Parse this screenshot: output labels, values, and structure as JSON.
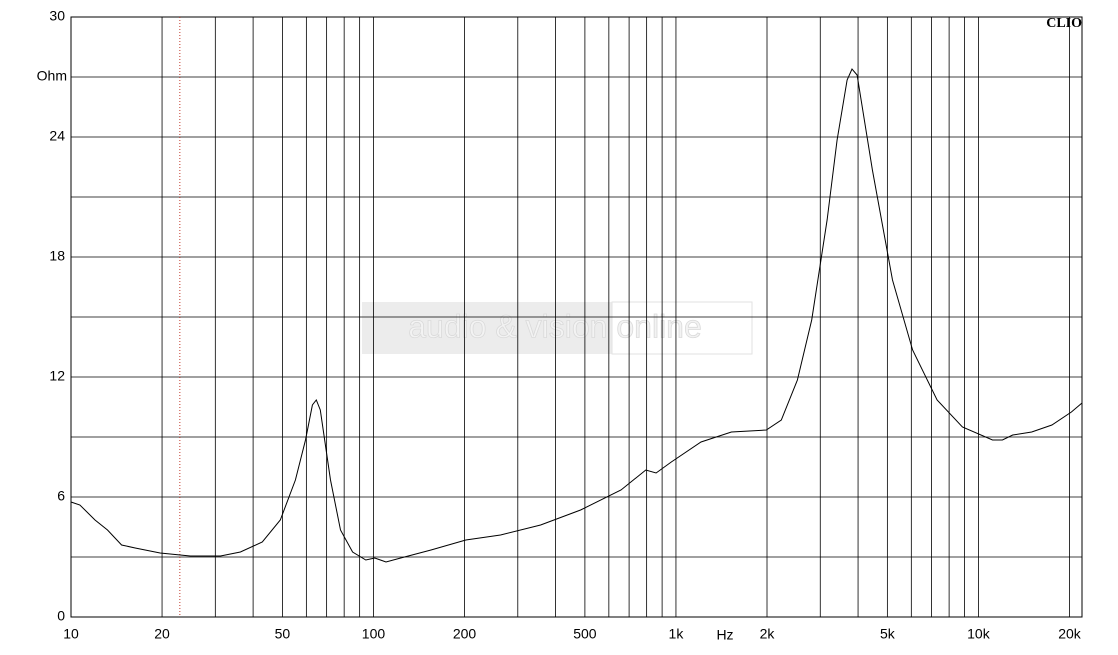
{
  "chart_data": {
    "type": "line",
    "brand": "CLIO",
    "xlabel": "Hz",
    "ylabel": "Ohm",
    "watermark": "audio & vision online",
    "log_x": true,
    "grid": true,
    "color": "#000000",
    "xlim": [
      10,
      22000
    ],
    "ylim": [
      0,
      30
    ],
    "xticks": [
      10,
      20,
      50,
      100,
      200,
      500,
      {
        "value": 1000,
        "label": "1k"
      },
      {
        "value": 2000,
        "label": "2k"
      },
      {
        "value": 5000,
        "label": "5k"
      },
      {
        "value": 10000,
        "label": "10k"
      },
      {
        "value": 20000,
        "label": "20k"
      }
    ],
    "x_minor_ticks": [
      30,
      40,
      60,
      70,
      80,
      90,
      300,
      400,
      600,
      700,
      800,
      900,
      3000,
      4000,
      6000,
      7000,
      8000,
      9000
    ],
    "yticks": [
      0,
      6,
      12,
      18,
      24,
      30
    ],
    "y_minor_ticks": [
      3,
      9,
      15,
      21,
      27
    ],
    "marker_x": 22.9,
    "marker_color": "#c0392b",
    "x": [
      10,
      10.7,
      12,
      13.2,
      14.7,
      16.3,
      19.7,
      24.8,
      31.2,
      36.3,
      42.9,
      49.2,
      55.2,
      59.6,
      62.8,
      64.7,
      66.7,
      72.1,
      77.8,
      85.3,
      94.3,
      101,
      110,
      123,
      155,
      202,
      263,
      357,
      484,
      658,
      795,
      860,
      965,
      1210,
      1525,
      1990,
      2230,
      2520,
      2810,
      3160,
      3410,
      3680,
      3820,
      3970,
      4460,
      5200,
      6060,
      7300,
      8850,
      11130,
      12000,
      12980,
      15000,
      17500,
      20300,
      22000
    ],
    "values": [
      5.75,
      5.6,
      4.85,
      4.35,
      3.6,
      3.45,
      3.2,
      3.05,
      3.05,
      3.25,
      3.75,
      4.85,
      6.85,
      8.85,
      10.6,
      10.85,
      10.35,
      6.85,
      4.35,
      3.25,
      2.85,
      2.95,
      2.75,
      2.95,
      3.35,
      3.85,
      4.1,
      4.6,
      5.35,
      6.35,
      7.35,
      7.2,
      7.75,
      8.75,
      9.25,
      9.35,
      9.85,
      11.85,
      14.85,
      19.85,
      23.85,
      26.85,
      27.4,
      27.1,
      22.35,
      16.85,
      13.35,
      10.85,
      9.5,
      8.85,
      8.85,
      9.1,
      9.25,
      9.6,
      10.25,
      10.7
    ]
  }
}
